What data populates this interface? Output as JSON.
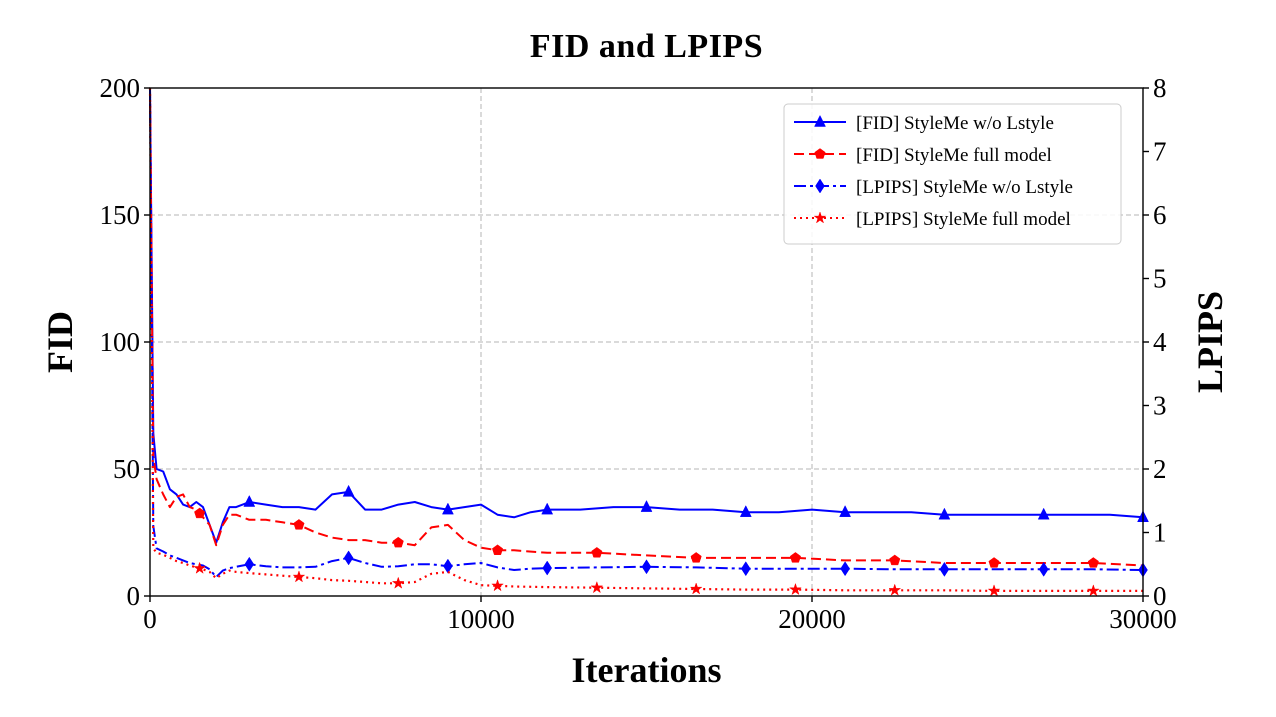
{
  "chart_data": {
    "type": "line",
    "title": "FID and LPIPS",
    "xlabel": "Iterations",
    "ylabel_left": "FID",
    "ylabel_right": "LPIPS",
    "xlim": [
      0,
      30000
    ],
    "ylim_left": [
      0,
      200
    ],
    "ylim_right": [
      0,
      8
    ],
    "x_ticks": [
      0,
      10000,
      20000,
      30000
    ],
    "x_tick_labels": [
      "0",
      "10000",
      "20000",
      "30000"
    ],
    "y_left_ticks": [
      0,
      50,
      100,
      150,
      200
    ],
    "y_left_tick_labels": [
      "0",
      "50",
      "100",
      "150",
      "200"
    ],
    "y_right_ticks": [
      0,
      1,
      2,
      3,
      4,
      5,
      6,
      7,
      8
    ],
    "y_right_tick_labels": [
      "0",
      "1",
      "2",
      "3",
      "4",
      "5",
      "6",
      "7",
      "8"
    ],
    "grid": true,
    "legend_position": "top-right",
    "series": [
      {
        "name": "[FID] StyleMe w/o Lstyle",
        "axis": "left",
        "color": "#0000ff",
        "linestyle": "solid",
        "marker": "triangle",
        "x": [
          0,
          100,
          200,
          400,
          600,
          800,
          1000,
          1200,
          1400,
          1600,
          1800,
          2000,
          2200,
          2400,
          2600,
          2800,
          3000,
          3500,
          4000,
          4500,
          5000,
          5500,
          6000,
          6500,
          7000,
          7500,
          8000,
          8500,
          9000,
          9500,
          10000,
          10500,
          11000,
          11500,
          12000,
          13000,
          14000,
          15000,
          16000,
          17000,
          18000,
          19000,
          20000,
          21000,
          22000,
          23000,
          24000,
          25000,
          26000,
          27000,
          28000,
          29000,
          30000
        ],
        "y": [
          200,
          64,
          50,
          49,
          42,
          40,
          36,
          35,
          37,
          35,
          28,
          21,
          29,
          35,
          35,
          36,
          37,
          36,
          35,
          35,
          34,
          40,
          41,
          34,
          34,
          36,
          37,
          35,
          34,
          35,
          36,
          32,
          31,
          33,
          34,
          34,
          35,
          35,
          34,
          34,
          33,
          33,
          34,
          33,
          33,
          33,
          32,
          32,
          32,
          32,
          32,
          32,
          31
        ],
        "marker_x": [
          3000,
          6000,
          9000,
          12000,
          15000,
          18000,
          21000,
          24000,
          27000,
          30000
        ]
      },
      {
        "name": "[FID] StyleMe full model",
        "axis": "left",
        "color": "#ff0000",
        "linestyle": "dashed",
        "marker": "pentagon",
        "x": [
          0,
          100,
          200,
          400,
          600,
          800,
          1000,
          1200,
          1400,
          1600,
          1800,
          2000,
          2200,
          2400,
          2600,
          3000,
          3500,
          4000,
          4500,
          5000,
          5500,
          6000,
          6500,
          7000,
          7500,
          8000,
          8500,
          9000,
          9500,
          10000,
          10500,
          11000,
          12000,
          13500,
          15000,
          16500,
          18000,
          19500,
          21000,
          22500,
          24000,
          25500,
          27000,
          28500,
          30000
        ],
        "y": [
          200,
          55,
          46,
          40,
          35,
          39,
          40,
          35,
          34,
          31,
          28,
          20,
          28,
          32,
          32,
          30,
          30,
          29,
          28,
          25,
          23,
          22,
          22,
          21,
          21,
          20,
          27,
          28,
          22,
          19,
          18,
          18,
          17,
          17,
          16,
          15,
          15,
          15,
          14,
          14,
          13,
          13,
          13,
          13,
          12
        ],
        "marker_x": [
          1500,
          4500,
          7500,
          10500,
          13500,
          16500,
          19500,
          22500,
          25500,
          28500
        ]
      },
      {
        "name": "[LPIPS] StyleMe w/o Lstyle",
        "axis": "right",
        "color": "#0000ff",
        "linestyle": "dashdot",
        "marker": "diamond",
        "x": [
          0,
          100,
          200,
          400,
          600,
          800,
          1000,
          1200,
          1400,
          1600,
          1800,
          2000,
          2200,
          2400,
          2600,
          2800,
          3000,
          3500,
          4000,
          4500,
          5000,
          5500,
          6000,
          6500,
          7000,
          7500,
          8000,
          8500,
          9000,
          9500,
          10000,
          10500,
          11000,
          11500,
          12000,
          13500,
          15000,
          16500,
          18000,
          19500,
          21000,
          22500,
          24000,
          25500,
          27000,
          28500,
          30000
        ],
        "y": [
          8,
          1.1,
          0.75,
          0.7,
          0.64,
          0.6,
          0.56,
          0.52,
          0.5,
          0.48,
          0.42,
          0.3,
          0.4,
          0.44,
          0.46,
          0.48,
          0.5,
          0.47,
          0.45,
          0.45,
          0.46,
          0.55,
          0.6,
          0.52,
          0.46,
          0.47,
          0.5,
          0.5,
          0.47,
          0.5,
          0.52,
          0.45,
          0.41,
          0.43,
          0.44,
          0.45,
          0.46,
          0.45,
          0.43,
          0.43,
          0.43,
          0.42,
          0.42,
          0.42,
          0.42,
          0.42,
          0.41
        ],
        "marker_x": [
          3000,
          6000,
          9000,
          12000,
          15000,
          18000,
          21000,
          24000,
          27000,
          30000
        ]
      },
      {
        "name": "[LPIPS] StyleMe full model",
        "axis": "right",
        "color": "#ff0000",
        "linestyle": "dotted",
        "marker": "star",
        "x": [
          0,
          100,
          200,
          400,
          600,
          800,
          1000,
          1200,
          1400,
          1600,
          1800,
          2000,
          2200,
          2400,
          2600,
          3000,
          3500,
          4000,
          4500,
          5000,
          5500,
          6000,
          6500,
          7000,
          7500,
          8000,
          8500,
          9000,
          9500,
          10000,
          10500,
          11000,
          12000,
          13500,
          15000,
          16500,
          18000,
          19500,
          21000,
          22500,
          24000,
          25500,
          27000,
          28500,
          30000
        ],
        "y": [
          8,
          0.75,
          0.68,
          0.65,
          0.6,
          0.55,
          0.52,
          0.48,
          0.45,
          0.42,
          0.38,
          0.28,
          0.35,
          0.4,
          0.38,
          0.36,
          0.34,
          0.32,
          0.3,
          0.28,
          0.25,
          0.24,
          0.22,
          0.2,
          0.2,
          0.22,
          0.35,
          0.38,
          0.25,
          0.17,
          0.16,
          0.15,
          0.14,
          0.13,
          0.12,
          0.11,
          0.1,
          0.1,
          0.09,
          0.09,
          0.09,
          0.08,
          0.08,
          0.08,
          0.08
        ],
        "marker_x": [
          1500,
          4500,
          7500,
          10500,
          13500,
          16500,
          19500,
          22500,
          25500,
          28500
        ]
      }
    ]
  }
}
